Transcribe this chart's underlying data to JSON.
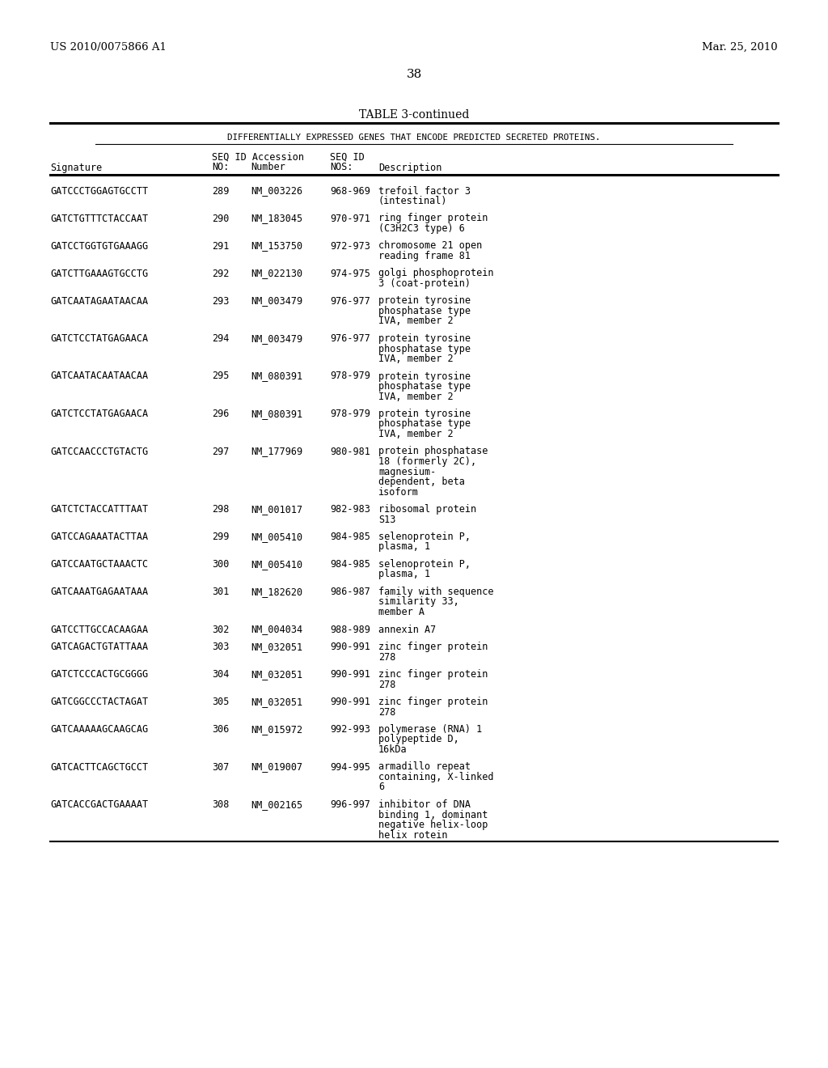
{
  "header_left": "US 2010/0075866 A1",
  "header_right": "Mar. 25, 2010",
  "page_number": "38",
  "table_title": "TABLE 3-continued",
  "subtitle": "DIFFERENTIALLY EXPRESSED GENES THAT ENCODE PREDICTED SECRETED PROTEINS.",
  "rows": [
    [
      "GATCCCTGGAGTGCCTT",
      "289",
      "NM_003226",
      "968-969",
      "trefoil factor 3\n(intestinal)"
    ],
    [
      "GATCTGTTTCTACCAAT",
      "290",
      "NM_183045",
      "970-971",
      "ring finger protein\n(C3H2C3 type) 6"
    ],
    [
      "GATCCTGGTGTGAAAGG",
      "291",
      "NM_153750",
      "972-973",
      "chromosome 21 open\nreading frame 81"
    ],
    [
      "GATCTTGAAAGTGCCTG",
      "292",
      "NM_022130",
      "974-975",
      "golgi phosphoprotein\n3 (coat-protein)"
    ],
    [
      "GATCAATAGAATAACAA",
      "293",
      "NM_003479",
      "976-977",
      "protein tyrosine\nphosphatase type\nIVA, member 2"
    ],
    [
      "GATCTCCTATGAGAACA",
      "294",
      "NM_003479",
      "976-977",
      "protein tyrosine\nphosphatase type\nIVA, member 2"
    ],
    [
      "GATCAATACAATAACAA",
      "295",
      "NM_080391",
      "978-979",
      "protein tyrosine\nphosphatase type\nIVA, member 2"
    ],
    [
      "GATCTCCTATGAGAACA",
      "296",
      "NM_080391",
      "978-979",
      "protein tyrosine\nphosphatase type\nIVA, member 2"
    ],
    [
      "GATCCAACCCTGTACTG",
      "297",
      "NM_177969",
      "980-981",
      "protein phosphatase\n18 (formerly 2C),\nmagnesium-\ndependent, beta\nisoform"
    ],
    [
      "GATCTCTACCATTTAAT",
      "298",
      "NM_001017",
      "982-983",
      "ribosomal protein\nS13"
    ],
    [
      "GATCCAGAAATACTTAA",
      "299",
      "NM_005410",
      "984-985",
      "selenoprotein P,\nplasma, 1"
    ],
    [
      "GATCCAATGCTAAACTC",
      "300",
      "NM_005410",
      "984-985",
      "selenoprotein P,\nplasma, 1"
    ],
    [
      "GATCAAATGAGAATAAA",
      "301",
      "NM_182620",
      "986-987",
      "family with sequence\nsimilarity 33,\nmember A"
    ],
    [
      "GATCCTTGCCACAAGAA",
      "302",
      "NM_004034",
      "988-989",
      "annexin A7"
    ],
    [
      "GATCAGACTGTATTAAA",
      "303",
      "NM_032051",
      "990-991",
      "zinc finger protein\n278"
    ],
    [
      "GATCTCCCACTGCGGGG",
      "304",
      "NM_032051",
      "990-991",
      "zinc finger protein\n278"
    ],
    [
      "GATCGGCCCTACTAGAT",
      "305",
      "NM_032051",
      "990-991",
      "zinc finger protein\n278"
    ],
    [
      "GATCAAAAAGCAAGCAG",
      "306",
      "NM_015972",
      "992-993",
      "polymerase (RNA) 1\npolypeptide D,\n16kDa"
    ],
    [
      "GATCACTTCAGCTGCCT",
      "307",
      "NM_019007",
      "994-995",
      "armadillo repeat\ncontaining, X-linked\n6"
    ],
    [
      "GATCACCGACTGAAAAT",
      "308",
      "NM_002165",
      "996-997",
      "inhibitor of DNA\nbinding 1, dominant\nnegative helix-loop\nhelix rotein"
    ]
  ],
  "background_color": "#ffffff",
  "text_color": "#000000"
}
